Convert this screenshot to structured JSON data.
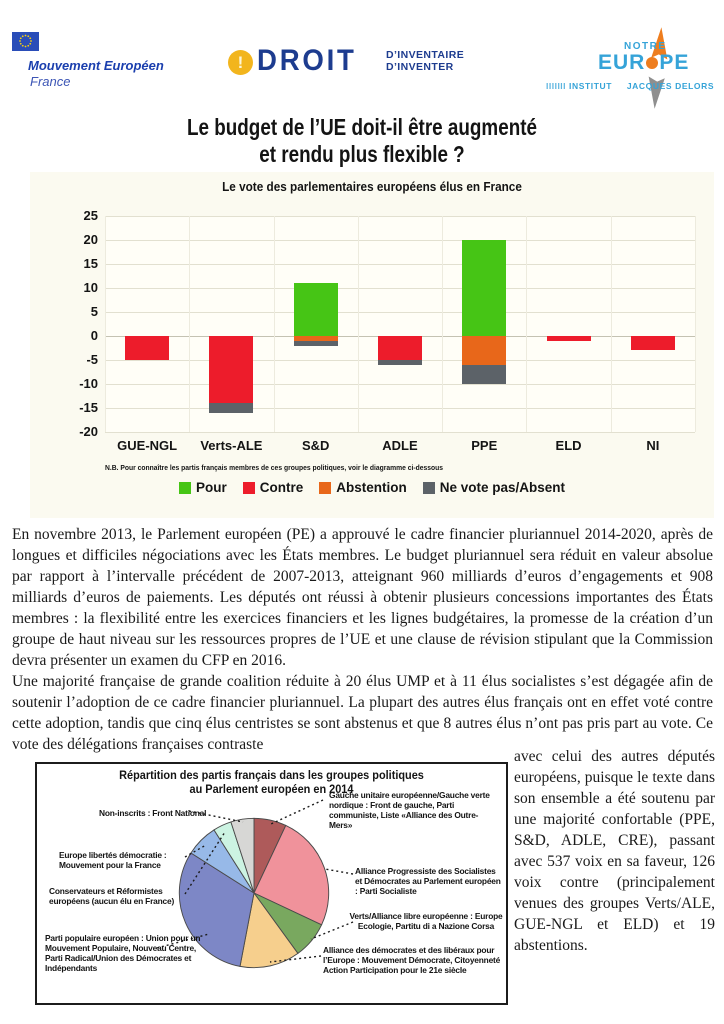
{
  "header": {
    "mouvement": {
      "name_line": "Mouvement Européen",
      "country": "France"
    },
    "droit": {
      "bang": "!",
      "word": "DROIT",
      "sub1": "D’INVENTAIRE",
      "sub2": "D’INVENTER"
    },
    "notre_europe": {
      "notre": "NOTRE",
      "eur": "EUR",
      "pe": "PE",
      "ticks": "IIIIIII",
      "institut": "INSTITUT",
      "delors": "JACQUES DELORS"
    }
  },
  "title": {
    "line1": "Le budget de l’UE doit-il être augmenté",
    "line2": "et rendu plus flexible ?"
  },
  "chart_data": [
    {
      "type": "bar",
      "title": "Le vote des parlementaires européens élus en France",
      "categories": [
        "GUE-NGL",
        "Verts-ALE",
        "S&D",
        "ADLE",
        "PPE",
        "ELD",
        "NI"
      ],
      "series": [
        {
          "name": "Pour",
          "color": "#46c515",
          "values": [
            0,
            0,
            11,
            0,
            20,
            0,
            0
          ]
        },
        {
          "name": "Contre",
          "color": "#ed1c2b",
          "values": [
            -5,
            -14,
            0,
            -5,
            0,
            -1,
            -3
          ]
        },
        {
          "name": "Abstention",
          "color": "#e8671a",
          "values": [
            0,
            0,
            -1,
            0,
            -6,
            0,
            0
          ]
        },
        {
          "name": "Ne vote pas/Absent",
          "color": "#5c6268",
          "values": [
            0,
            -2,
            -1,
            -1,
            -4,
            0,
            0
          ]
        }
      ],
      "ylim": [
        -20,
        25
      ],
      "ytick_step": 5,
      "grid": true,
      "legend_position": "bottom",
      "note": "N.B. Pour connaître les partis français membres de ces groupes politiques, voir le diagramme ci-dessous"
    },
    {
      "type": "pie",
      "title_line1": "Répartition des partis français dans les groupes politiques",
      "title_line2": "au Parlement européen en 2014",
      "slices": [
        {
          "label": "Gauche unitaire européenne/Gauche verte nordique : Front de gauche, Parti communiste, Liste «Alliance des Outre-Mers»",
          "value": 7,
          "color": "#ae5a5a"
        },
        {
          "label": "Alliance Progressiste des Socialistes et Démocrates au Parlement européen : Parti Socialiste",
          "value": 25,
          "color": "#f0929b"
        },
        {
          "label": "Verts/Alliance libre européenne : Europe Ecologie, Partitu di a Nazione Corsa",
          "value": 8,
          "color": "#79a85f"
        },
        {
          "label": "Alliance des démocrates et des libéraux pour l’Europe : Mouvement Démocrate, Citoyenneté Action Participation pour le 21e siècle",
          "value": 13,
          "color": "#f6cf8d"
        },
        {
          "label": "Parti populaire européen : Union pour un Mouvement Populaire, Nouveau Centre, Parti Radical/Union des Démocrates et Indépendants",
          "value": 31,
          "color": "#7d87c6"
        },
        {
          "label": "Europe libertés démocratie : Mouvement pour la France",
          "value": 7,
          "color": "#97b9e8"
        },
        {
          "label": "Conservateurs et Réformistes européens (aucun élu en France)",
          "value": 4,
          "color": "#ccf3e2"
        },
        {
          "label": "Non-inscrits : Front National",
          "value": 5,
          "color": "#d7d7d5"
        }
      ],
      "stroke_color": "#4a4a4a"
    }
  ],
  "body": {
    "p1": "En novembre 2013, le Parlement européen (PE) a approuvé le cadre financier pluriannuel 2014-2020, après de longues et difficiles négociations avec les États membres. Le budget pluriannuel sera réduit en valeur absolue par rapport à l’intervalle précédent de 2007-2013, atteignant 960 milliards d’euros d’engagements et 908 milliards d’euros de paiements. Les députés ont réussi à obtenir plusieurs concessions importantes des États membres : la flexibilité entre les exercices financiers et les lignes budgétaires, la promesse de la création d’un groupe de haut niveau sur les ressources propres de l’UE et une clause de révision stipulant que la Commission devra présenter un examen du CFP en 2016.",
    "p2": "Une majorité française de grande coalition réduite à 20 élus UMP et à 11 élus socialistes s’est dégagée afin de soutenir l’adoption de ce cadre financier pluriannuel. La plupart des autres élus français ont en effet voté contre cette adoption, tandis que cinq élus centristes se sont abstenus et que 8 autres élus n’ont pas pris part au vote. Ce vote des délégations françaises contraste",
    "p2_wrap": "avec celui des autres députés européens, puisque le texte dans son ensemble a été soutenu par une majorité confortable (PPE, S&D, ADLE, CRE), passant avec 537 voix en sa faveur, 126 voix contre (principalement venues des groupes Verts/ALE, GUE-NGL et ELD) et 19 abstentions."
  },
  "colors": {
    "eu_blue": "#2a4db8",
    "eu_star_yellow": "#f8d10c",
    "droit_navy": "#1d3c8f",
    "droit_yellow": "#f2b51d",
    "ne_blue": "#35a3d8",
    "ne_orange": "#ee7d1e",
    "chart_panel_bg": "#fbfaf0"
  }
}
